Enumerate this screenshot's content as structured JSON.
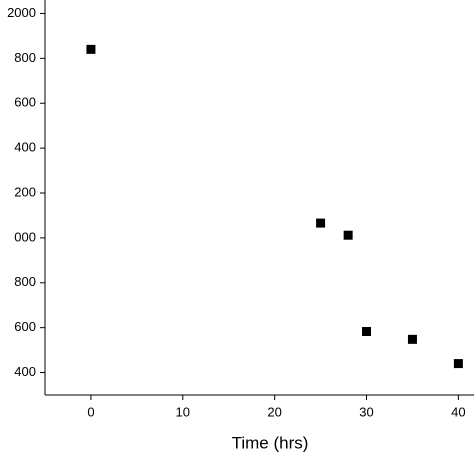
{
  "chart_data": {
    "type": "scatter",
    "x_label": "Time (hrs)",
    "x": [
      0,
      25,
      28,
      30,
      35,
      40
    ],
    "values": [
      1840,
      1066,
      1012,
      583,
      548,
      440
    ],
    "color": "#000000",
    "xlim": [
      -5,
      41.7
    ],
    "xticks": [
      0,
      10,
      20,
      30,
      40
    ],
    "ylim": [
      300,
      2060
    ],
    "yticks": [
      2000,
      {
        "value": 1800,
        "label": "800"
      },
      {
        "value": 1600,
        "label": "600"
      },
      {
        "value": 1400,
        "label": "400"
      },
      {
        "value": 1200,
        "label": "200"
      },
      {
        "value": 1000,
        "label": "000"
      },
      800,
      600,
      400
    ]
  }
}
